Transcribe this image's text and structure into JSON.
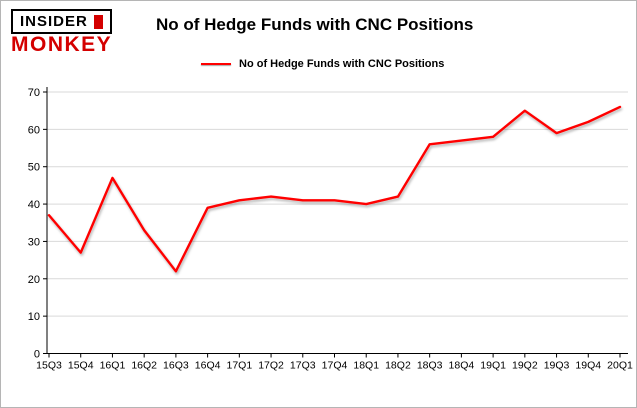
{
  "logo": {
    "line1": "INSIDER",
    "line2": "MONKEY",
    "accent_color": "#d40000"
  },
  "header": {
    "title": "No of Hedge Funds with CNC Positions"
  },
  "legend": {
    "label": "No of Hedge Funds with CNC Positions",
    "color": "#ff0000"
  },
  "chart_data": {
    "type": "line",
    "title": "No of Hedge Funds with CNC Positions",
    "categories": [
      "15Q3",
      "15Q4",
      "16Q1",
      "16Q2",
      "16Q3",
      "16Q4",
      "17Q1",
      "17Q2",
      "17Q3",
      "17Q4",
      "18Q1",
      "18Q2",
      "18Q3",
      "18Q4",
      "19Q1",
      "19Q2",
      "19Q3",
      "19Q4",
      "20Q1"
    ],
    "series": [
      {
        "name": "No of Hedge Funds with CNC Positions",
        "color": "#ff0000",
        "values": [
          37,
          27,
          47,
          33,
          22,
          39,
          41,
          42,
          41,
          41,
          40,
          42,
          56,
          57,
          58,
          65,
          59,
          62,
          66
        ]
      }
    ],
    "xlabel": "",
    "ylabel": "",
    "ylim": [
      0,
      70
    ],
    "yticks": [
      0,
      10,
      20,
      30,
      40,
      50,
      60,
      70
    ],
    "grid": true,
    "grid_color": "#d9d9d9",
    "axis_color": "#000000",
    "legend_position": "top"
  }
}
